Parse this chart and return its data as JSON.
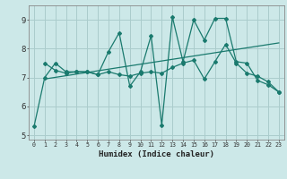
{
  "xlabel": "Humidex (Indice chaleur)",
  "bg_color": "#cce8e8",
  "grid_color": "#aacccc",
  "line_color": "#1a7a6e",
  "xlim": [
    -0.5,
    23.5
  ],
  "ylim": [
    4.85,
    9.5
  ],
  "yticks": [
    5,
    6,
    7,
    8,
    9
  ],
  "xticks": [
    0,
    1,
    2,
    3,
    4,
    5,
    6,
    7,
    8,
    9,
    10,
    11,
    12,
    13,
    14,
    15,
    16,
    17,
    18,
    19,
    20,
    21,
    22,
    23
  ],
  "line1_x": [
    0,
    1,
    2,
    3,
    4,
    5,
    6,
    7,
    8,
    9,
    10,
    11,
    12,
    13,
    14,
    15,
    16,
    17,
    18,
    19,
    20,
    21,
    22,
    23
  ],
  "line1_y": [
    5.3,
    7.0,
    7.5,
    7.2,
    7.2,
    7.2,
    7.1,
    7.9,
    8.55,
    6.7,
    7.2,
    8.45,
    5.35,
    9.1,
    7.55,
    9.0,
    8.3,
    9.05,
    9.05,
    7.55,
    7.5,
    6.9,
    6.75,
    6.5
  ],
  "line2_x": [
    1,
    2,
    3,
    4,
    5,
    6,
    7,
    8,
    9,
    10,
    11,
    12,
    13,
    14,
    15,
    16,
    17,
    18,
    19,
    20,
    21,
    22,
    23
  ],
  "line2_y": [
    7.5,
    7.25,
    7.15,
    7.2,
    7.2,
    7.1,
    7.2,
    7.1,
    7.05,
    7.15,
    7.2,
    7.15,
    7.35,
    7.5,
    7.6,
    6.95,
    7.55,
    8.15,
    7.5,
    7.15,
    7.05,
    6.85,
    6.5
  ],
  "trend_x": [
    1,
    23
  ],
  "trend_y": [
    6.95,
    8.2
  ]
}
